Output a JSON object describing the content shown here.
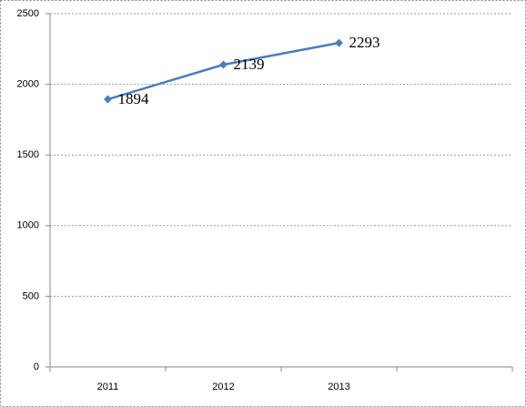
{
  "chart_data": {
    "type": "line",
    "categories": [
      "2011",
      "2012",
      "2013",
      null
    ],
    "series": [
      {
        "color": "#4a7ebb",
        "values": [
          1894,
          2139,
          2293,
          null
        ]
      }
    ],
    "ylim": [
      0,
      2500
    ],
    "yticks": [
      0,
      500,
      1000,
      1500,
      2000,
      2500
    ],
    "grid": true
  }
}
